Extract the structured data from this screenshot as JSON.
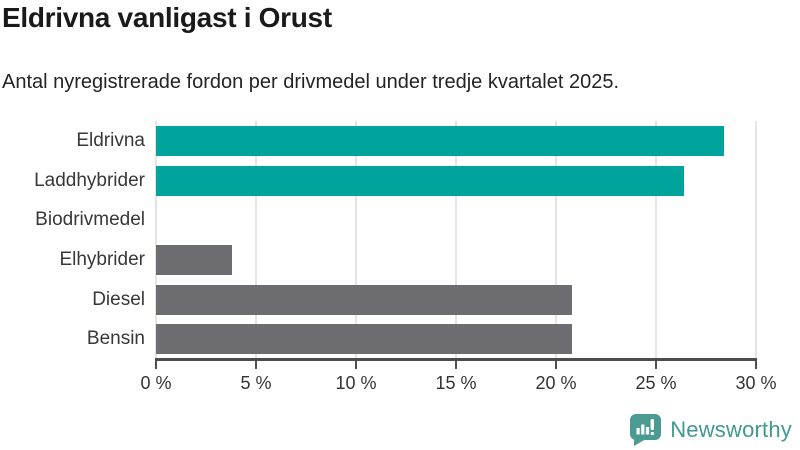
{
  "chart": {
    "title": "Eldrivna vanligast i Orust",
    "subtitle": "Antal nyregistrerade fordon per drivmedel under tredje kvartalet 2025."
  },
  "chart_data": {
    "type": "bar",
    "orientation": "horizontal",
    "title": "Eldrivna vanligast i Orust",
    "subtitle": "Antal nyregistrerade fordon per drivmedel under tredje kvartalet 2025.",
    "categories": [
      "Eldrivna",
      "Laddhybrider",
      "Biodrivmedel",
      "Elhybrider",
      "Diesel",
      "Bensin"
    ],
    "values": [
      28.4,
      26.4,
      0,
      3.8,
      20.8,
      20.8
    ],
    "unit": "%",
    "xlim": [
      0,
      30
    ],
    "xticks": [
      0,
      5,
      10,
      15,
      20,
      25,
      30
    ],
    "xtick_labels": [
      "0 %",
      "5 %",
      "10 %",
      "15 %",
      "20 %",
      "25 %",
      "30 %"
    ],
    "grid": "vertical-only",
    "legend": "none",
    "bar_colors": [
      "#00a49c",
      "#00a49c",
      "#6c6c71",
      "#6c6c71",
      "#6c6c71",
      "#6c6c71"
    ],
    "accent_color": "#00a49c",
    "base_color": "#6c6c71",
    "gridline_color": "#e4e4e4",
    "axis_color": "#4d4d4d"
  },
  "footer": {
    "brand": "Newsworthy",
    "brand_color": "#43988f"
  }
}
